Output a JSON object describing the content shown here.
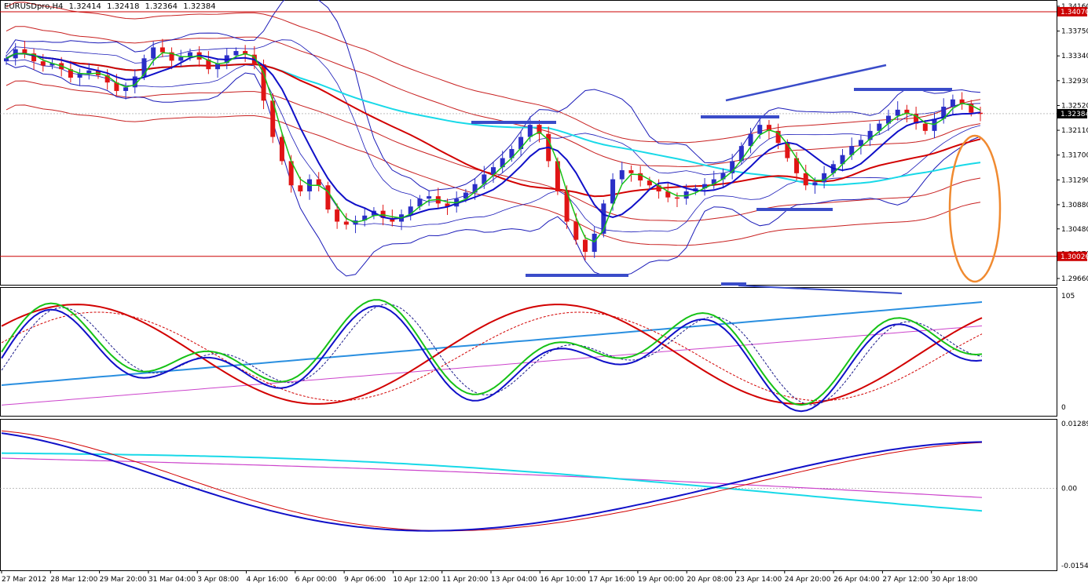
{
  "header": {
    "symbol": "EURUSDpro,H4",
    "open": "1.32414",
    "high": "1.32418",
    "low": "1.32364",
    "close": "1.32384"
  },
  "colors": {
    "candle_up": "#2b2fc7",
    "candle_down": "#e01515",
    "ma_fast": "#16c216",
    "ma_mid": "#1010c8",
    "ma_slow": "#d20000",
    "ma_cyan": "#18d9e8",
    "bands_red": "#c82020",
    "bands_blue": "#1a1ab8",
    "trend_line": "#3a4cc9",
    "ellipse": "#f08a30",
    "level_line": "#cc0000",
    "magenta": "#cc44cc",
    "lightblue": "#2a8fe0"
  },
  "chart_data": [
    {
      "type": "candlestick",
      "panel": "main",
      "symbol": "EURUSDpro,H4",
      "ylim": [
        1.2966,
        1.3416
      ],
      "y_ticks": [
        "1.34160",
        "1.33750",
        "1.33340",
        "1.32930",
        "1.32520",
        "1.32110",
        "1.31700",
        "1.31290",
        "1.30880",
        "1.30480",
        "1.30070",
        "1.29660"
      ],
      "levels": [
        {
          "label": "1.34070",
          "value": 1.3407
        },
        {
          "label": "1.30026",
          "value": 1.30026
        }
      ],
      "current_price": {
        "label": "1.32384",
        "value": 1.32384
      },
      "x_ticks": [
        "27 Mar 2012",
        "28 Mar 12:00",
        "29 Mar 20:00",
        "31 Mar 04:00",
        "3 Apr 08:00",
        "4 Apr 16:00",
        "6 Apr 00:00",
        "9 Apr 06:00",
        "10 Apr 12:00",
        "11 Apr 20:00",
        "13 Apr 04:00",
        "16 Apr 10:00",
        "17 Apr 16:00",
        "19 Apr 00:00",
        "20 Apr 08:00",
        "23 Apr 14:00",
        "24 Apr 20:00",
        "26 Apr 04:00",
        "27 Apr 12:00",
        "30 Apr 18:00"
      ],
      "close_series": [
        1.333,
        1.3345,
        1.3338,
        1.3325,
        1.3318,
        1.3322,
        1.3312,
        1.3298,
        1.3305,
        1.331,
        1.3302,
        1.329,
        1.3276,
        1.3282,
        1.33,
        1.333,
        1.3348,
        1.334,
        1.3326,
        1.3332,
        1.334,
        1.3328,
        1.3312,
        1.3322,
        1.3335,
        1.3342,
        1.3336,
        1.332,
        1.326,
        1.32,
        1.316,
        1.312,
        1.311,
        1.313,
        1.312,
        1.308,
        1.306,
        1.3055,
        1.3062,
        1.307,
        1.3078,
        1.3066,
        1.306,
        1.3072,
        1.3085,
        1.3098,
        1.3102,
        1.309,
        1.3085,
        1.3098,
        1.3108,
        1.3122,
        1.3138,
        1.315,
        1.3165,
        1.318,
        1.32,
        1.322,
        1.3205,
        1.316,
        1.311,
        1.306,
        1.303,
        1.301,
        1.304,
        1.309,
        1.313,
        1.3145,
        1.314,
        1.3128,
        1.312,
        1.311,
        1.31,
        1.3098,
        1.311,
        1.3115,
        1.3122,
        1.313,
        1.314,
        1.316,
        1.3185,
        1.3205,
        1.322,
        1.321,
        1.319,
        1.3165,
        1.314,
        1.312,
        1.3125,
        1.314,
        1.3155,
        1.317,
        1.3185,
        1.3195,
        1.321,
        1.3222,
        1.3235,
        1.3245,
        1.3238,
        1.3222,
        1.321,
        1.323,
        1.325,
        1.3262,
        1.3255,
        1.324,
        1.3238
      ]
    },
    {
      "type": "line",
      "panel": "oscillator",
      "y_ticks": [
        "105",
        "0"
      ],
      "ylim": [
        0,
        105
      ]
    },
    {
      "type": "line",
      "panel": "macd",
      "y_ticks": [
        "0.01289",
        "0.00",
        "-0.01544"
      ],
      "ylim": [
        -0.01544,
        0.01289
      ]
    }
  ]
}
